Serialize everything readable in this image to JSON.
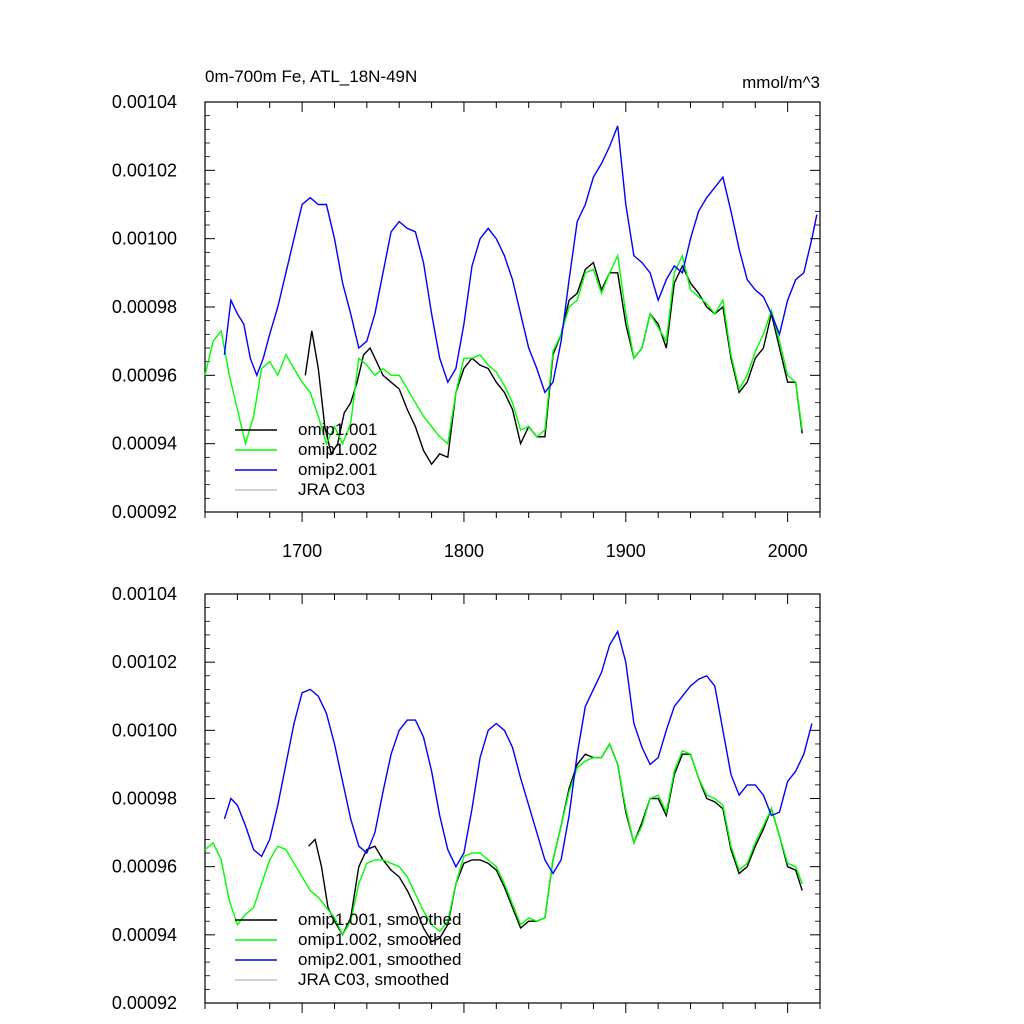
{
  "chart_data": [
    {
      "type": "line",
      "title": "0m-700m Fe, ATL_18N-49N",
      "units": "mmol/m^3",
      "xlim": [
        1640,
        2020
      ],
      "ylim": [
        0.00092,
        0.00104
      ],
      "xticks": [
        1700,
        1800,
        1900,
        2000
      ],
      "xtick_labels": [
        "1700",
        "1800",
        "1900",
        "2000"
      ],
      "yticks": [
        0.00092,
        0.00094,
        0.00096,
        0.00098,
        0.001,
        0.00102,
        0.00104
      ],
      "ytick_labels": [
        "0.00092",
        "0.00094",
        "0.00096",
        "0.00098",
        "0.00100",
        "0.00102",
        "0.00104"
      ],
      "legend_position": "bottom-left",
      "series": [
        {
          "name": "omip1.001",
          "color": "#000000",
          "x": [
            1702,
            1706,
            1710,
            1714,
            1718,
            1722,
            1726,
            1730,
            1734,
            1738,
            1742,
            1746,
            1750,
            1755,
            1760,
            1765,
            1770,
            1775,
            1780,
            1785,
            1790,
            1795,
            1800,
            1805,
            1810,
            1815,
            1820,
            1825,
            1830,
            1835,
            1840,
            1845,
            1850,
            1855,
            1860,
            1865,
            1870,
            1875,
            1880,
            1885,
            1890,
            1895,
            1900,
            1905,
            1910,
            1915,
            1920,
            1925,
            1930,
            1935,
            1940,
            1945,
            1950,
            1955,
            1960,
            1965,
            1970,
            1975,
            1980,
            1985,
            1990,
            1995,
            2000,
            2005,
            2009
          ],
          "y": [
            0.00096,
            0.000973,
            0.000962,
            0.000945,
            0.000937,
            0.00094,
            0.000949,
            0.000952,
            0.000958,
            0.000966,
            0.000968,
            0.000964,
            0.00096,
            0.000958,
            0.000956,
            0.00095,
            0.000945,
            0.000938,
            0.000934,
            0.000937,
            0.000936,
            0.000955,
            0.000962,
            0.000965,
            0.000963,
            0.000962,
            0.000958,
            0.000955,
            0.00095,
            0.00094,
            0.000945,
            0.000942,
            0.000942,
            0.000966,
            0.000972,
            0.000982,
            0.000984,
            0.000991,
            0.000993,
            0.000985,
            0.00099,
            0.00099,
            0.000975,
            0.000965,
            0.000968,
            0.000978,
            0.000975,
            0.000968,
            0.000987,
            0.000992,
            0.000987,
            0.000984,
            0.00098,
            0.000978,
            0.00098,
            0.000965,
            0.000955,
            0.000958,
            0.000965,
            0.000968,
            0.000978,
            0.000968,
            0.000958,
            0.000958,
            0.000943
          ]
        },
        {
          "name": "omip1.002",
          "color": "#00ff00",
          "x": [
            1640,
            1645,
            1650,
            1655,
            1660,
            1665,
            1670,
            1675,
            1680,
            1685,
            1690,
            1695,
            1700,
            1705,
            1710,
            1715,
            1720,
            1725,
            1730,
            1735,
            1740,
            1745,
            1750,
            1755,
            1760,
            1765,
            1770,
            1775,
            1780,
            1785,
            1790,
            1795,
            1800,
            1805,
            1810,
            1815,
            1820,
            1825,
            1830,
            1835,
            1840,
            1845,
            1850,
            1855,
            1860,
            1865,
            1870,
            1875,
            1880,
            1885,
            1890,
            1895,
            1900,
            1905,
            1910,
            1915,
            1920,
            1925,
            1930,
            1935,
            1940,
            1945,
            1950,
            1955,
            1960,
            1965,
            1970,
            1975,
            1980,
            1985,
            1990,
            1995,
            2000,
            2005,
            2009
          ],
          "y": [
            0.00096,
            0.00097,
            0.000973,
            0.00096,
            0.00095,
            0.00094,
            0.000948,
            0.000962,
            0.000964,
            0.00096,
            0.000966,
            0.000962,
            0.000958,
            0.000955,
            0.000948,
            0.00094,
            0.000945,
            0.00094,
            0.000946,
            0.000965,
            0.000963,
            0.00096,
            0.000962,
            0.00096,
            0.00096,
            0.000956,
            0.000952,
            0.000948,
            0.000945,
            0.000942,
            0.00094,
            0.000955,
            0.000965,
            0.000965,
            0.000966,
            0.000963,
            0.000961,
            0.000957,
            0.000952,
            0.000944,
            0.000945,
            0.000942,
            0.000944,
            0.000967,
            0.000972,
            0.00098,
            0.000982,
            0.00099,
            0.000991,
            0.000984,
            0.00099,
            0.000995,
            0.000978,
            0.000965,
            0.000968,
            0.000978,
            0.000974,
            0.00097,
            0.00099,
            0.000995,
            0.000985,
            0.000983,
            0.000981,
            0.000978,
            0.000982,
            0.000966,
            0.000956,
            0.00096,
            0.000967,
            0.000972,
            0.000979,
            0.00097,
            0.00096,
            0.000958,
            0.000944
          ]
        },
        {
          "name": "omip2.001",
          "color": "#0000ff",
          "x": [
            1652,
            1656,
            1660,
            1664,
            1668,
            1672,
            1676,
            1680,
            1685,
            1690,
            1695,
            1700,
            1705,
            1710,
            1715,
            1720,
            1725,
            1730,
            1735,
            1740,
            1745,
            1750,
            1755,
            1760,
            1765,
            1770,
            1775,
            1780,
            1785,
            1790,
            1795,
            1800,
            1805,
            1810,
            1815,
            1820,
            1825,
            1830,
            1835,
            1840,
            1845,
            1850,
            1855,
            1860,
            1865,
            1870,
            1875,
            1880,
            1885,
            1890,
            1895,
            1900,
            1905,
            1910,
            1915,
            1920,
            1925,
            1930,
            1935,
            1940,
            1945,
            1950,
            1955,
            1960,
            1965,
            1970,
            1975,
            1980,
            1985,
            1990,
            1995,
            2000,
            2005,
            2010,
            2015,
            2018
          ],
          "y": [
            0.000966,
            0.000982,
            0.000978,
            0.000975,
            0.000965,
            0.00096,
            0.000965,
            0.000972,
            0.00098,
            0.00099,
            0.001,
            0.00101,
            0.001012,
            0.00101,
            0.00101,
            0.001,
            0.000987,
            0.000978,
            0.000968,
            0.00097,
            0.000978,
            0.00099,
            0.001002,
            0.001005,
            0.001003,
            0.001002,
            0.000993,
            0.000978,
            0.000965,
            0.000958,
            0.000962,
            0.000975,
            0.000992,
            0.001,
            0.001003,
            0.001,
            0.000995,
            0.000988,
            0.000978,
            0.000968,
            0.000962,
            0.000955,
            0.000958,
            0.00097,
            0.000988,
            0.001005,
            0.00101,
            0.001018,
            0.001022,
            0.001027,
            0.001033,
            0.00101,
            0.000995,
            0.000993,
            0.00099,
            0.000982,
            0.000988,
            0.000992,
            0.00099,
            0.001,
            0.001008,
            0.001012,
            0.001015,
            0.001018,
            0.001008,
            0.000997,
            0.000988,
            0.000985,
            0.000983,
            0.000978,
            0.000972,
            0.000982,
            0.000988,
            0.00099,
            0.001,
            0.001007
          ]
        },
        {
          "name": "JRA C03",
          "color": "#c0c0c0",
          "x": [],
          "y": []
        }
      ]
    },
    {
      "type": "line",
      "title": "",
      "xlim": [
        1640,
        2020
      ],
      "ylim": [
        0.00092,
        0.00104
      ],
      "xticks": [
        1700,
        1800,
        1900,
        2000
      ],
      "yticks": [
        0.00092,
        0.00094,
        0.00096,
        0.00098,
        0.001,
        0.00102,
        0.00104
      ],
      "ytick_labels": [
        "0.00092",
        "0.00094",
        "0.00096",
        "0.00098",
        "0.00100",
        "0.00102",
        "0.00104"
      ],
      "legend_position": "bottom-left",
      "series": [
        {
          "name": "omip1.001, smoothed",
          "color": "#000000",
          "x": [
            1704,
            1708,
            1712,
            1716,
            1720,
            1725,
            1730,
            1735,
            1740,
            1745,
            1750,
            1755,
            1760,
            1765,
            1770,
            1775,
            1780,
            1785,
            1790,
            1795,
            1800,
            1805,
            1810,
            1815,
            1820,
            1825,
            1830,
            1835,
            1840,
            1845,
            1850,
            1855,
            1860,
            1865,
            1870,
            1875,
            1880,
            1885,
            1890,
            1895,
            1900,
            1905,
            1910,
            1915,
            1920,
            1925,
            1930,
            1935,
            1940,
            1945,
            1950,
            1955,
            1960,
            1965,
            1970,
            1975,
            1980,
            1985,
            1990,
            1995,
            2000,
            2005,
            2009
          ],
          "y": [
            0.000966,
            0.000968,
            0.00096,
            0.000948,
            0.000944,
            0.00094,
            0.000945,
            0.00096,
            0.000965,
            0.000966,
            0.000962,
            0.000959,
            0.000957,
            0.000953,
            0.000948,
            0.000942,
            0.000938,
            0.000939,
            0.000943,
            0.000955,
            0.000961,
            0.000962,
            0.000962,
            0.000961,
            0.000959,
            0.000954,
            0.000948,
            0.000942,
            0.000944,
            0.000944,
            0.000945,
            0.000962,
            0.000972,
            0.000983,
            0.00099,
            0.000993,
            0.000992,
            0.000992,
            0.000996,
            0.00099,
            0.000976,
            0.000967,
            0.000973,
            0.00098,
            0.00098,
            0.000975,
            0.000987,
            0.000993,
            0.000993,
            0.000986,
            0.00098,
            0.000979,
            0.000977,
            0.000965,
            0.000958,
            0.00096,
            0.000966,
            0.000971,
            0.000977,
            0.000969,
            0.00096,
            0.000959,
            0.000953
          ]
        },
        {
          "name": "omip1.002, smoothed",
          "color": "#00ff00",
          "x": [
            1640,
            1645,
            1650,
            1655,
            1660,
            1665,
            1670,
            1675,
            1680,
            1685,
            1690,
            1695,
            1700,
            1705,
            1710,
            1715,
            1720,
            1725,
            1730,
            1735,
            1740,
            1745,
            1750,
            1755,
            1760,
            1765,
            1770,
            1775,
            1780,
            1785,
            1790,
            1795,
            1800,
            1805,
            1810,
            1815,
            1820,
            1825,
            1830,
            1835,
            1840,
            1845,
            1850,
            1855,
            1860,
            1865,
            1870,
            1875,
            1880,
            1885,
            1890,
            1895,
            1900,
            1905,
            1910,
            1915,
            1920,
            1925,
            1930,
            1935,
            1940,
            1945,
            1950,
            1955,
            1960,
            1965,
            1970,
            1975,
            1980,
            1985,
            1990,
            1995,
            2000,
            2005,
            2009
          ],
          "y": [
            0.000965,
            0.000967,
            0.000962,
            0.00095,
            0.000943,
            0.000946,
            0.000948,
            0.000955,
            0.000962,
            0.000966,
            0.000965,
            0.000961,
            0.000957,
            0.000953,
            0.000951,
            0.000948,
            0.000945,
            0.00094,
            0.000944,
            0.000955,
            0.000961,
            0.000962,
            0.000962,
            0.000961,
            0.00096,
            0.000957,
            0.000952,
            0.000947,
            0.000943,
            0.000941,
            0.000944,
            0.000955,
            0.000963,
            0.000964,
            0.000964,
            0.000962,
            0.00096,
            0.000955,
            0.000949,
            0.000943,
            0.000945,
            0.000944,
            0.000945,
            0.000962,
            0.000972,
            0.000982,
            0.000989,
            0.000991,
            0.000992,
            0.000992,
            0.000996,
            0.00099,
            0.000977,
            0.000967,
            0.000972,
            0.00098,
            0.000981,
            0.000976,
            0.000988,
            0.000994,
            0.000993,
            0.000986,
            0.000981,
            0.00098,
            0.000978,
            0.000966,
            0.000959,
            0.000961,
            0.000967,
            0.000972,
            0.000977,
            0.000969,
            0.000961,
            0.00096,
            0.000955
          ]
        },
        {
          "name": "omip2.001, smoothed",
          "color": "#0000ff",
          "x": [
            1652,
            1656,
            1660,
            1665,
            1670,
            1675,
            1680,
            1685,
            1690,
            1695,
            1700,
            1705,
            1710,
            1715,
            1720,
            1725,
            1730,
            1735,
            1740,
            1745,
            1750,
            1755,
            1760,
            1765,
            1770,
            1775,
            1780,
            1785,
            1790,
            1795,
            1800,
            1805,
            1810,
            1815,
            1820,
            1825,
            1830,
            1835,
            1840,
            1845,
            1850,
            1855,
            1860,
            1865,
            1870,
            1875,
            1880,
            1885,
            1890,
            1895,
            1900,
            1905,
            1910,
            1915,
            1920,
            1925,
            1930,
            1935,
            1940,
            1945,
            1950,
            1955,
            1960,
            1965,
            1970,
            1975,
            1980,
            1985,
            1990,
            1995,
            2000,
            2005,
            2010,
            2015
          ],
          "y": [
            0.000974,
            0.00098,
            0.000978,
            0.000972,
            0.000965,
            0.000963,
            0.000968,
            0.000978,
            0.00099,
            0.001002,
            0.001011,
            0.001012,
            0.00101,
            0.001005,
            0.000996,
            0.000985,
            0.000974,
            0.000966,
            0.000964,
            0.00097,
            0.000982,
            0.000993,
            0.001,
            0.001003,
            0.001003,
            0.000998,
            0.000988,
            0.000975,
            0.000965,
            0.00096,
            0.000964,
            0.000977,
            0.000992,
            0.001,
            0.001002,
            0.001,
            0.000995,
            0.000986,
            0.000978,
            0.00097,
            0.000962,
            0.000958,
            0.000962,
            0.000975,
            0.000993,
            0.001007,
            0.001012,
            0.001017,
            0.001025,
            0.001029,
            0.00102,
            0.001002,
            0.000995,
            0.00099,
            0.000992,
            0.001,
            0.001007,
            0.00101,
            0.001013,
            0.001015,
            0.001016,
            0.001013,
            0.001,
            0.000987,
            0.000981,
            0.000984,
            0.000984,
            0.000981,
            0.000975,
            0.000976,
            0.000985,
            0.000988,
            0.000993,
            0.001002
          ]
        },
        {
          "name": "JRA C03, smoothed",
          "color": "#c0c0c0",
          "x": [],
          "y": []
        }
      ]
    }
  ]
}
